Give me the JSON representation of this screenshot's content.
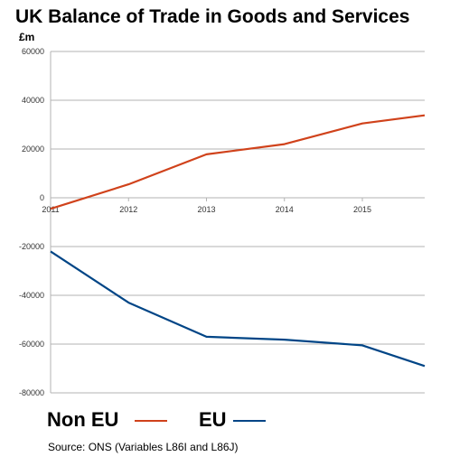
{
  "chart_data": {
    "type": "line",
    "title": "UK Balance of Trade in Goods and Services",
    "ylabel": "£m",
    "xlabel": "",
    "x_ticks": [
      "2011",
      "2012",
      "2013",
      "2014",
      "2015"
    ],
    "y_ticks": [
      "60000",
      "40000",
      "20000",
      "0",
      "-20000",
      "-40000",
      "-60000",
      "-80000"
    ],
    "xlim": [
      2011,
      2015.8
    ],
    "ylim": [
      -80000,
      60000
    ],
    "grid": "horizontal",
    "legend_position": "bottom",
    "series": [
      {
        "name": "Non EU",
        "color": "#d0421b",
        "x": [
          2011,
          2012,
          2013,
          2014,
          2015,
          2015.8
        ],
        "y": [
          -4500,
          5500,
          17800,
          22000,
          30500,
          33800
        ]
      },
      {
        "name": "EU",
        "color": "#004586",
        "x": [
          2011,
          2012,
          2013,
          2014,
          2015,
          2015.8
        ],
        "y": [
          -22000,
          -43000,
          -57000,
          -58200,
          -60500,
          -69000
        ]
      }
    ]
  },
  "source_text": "Source:  ONS (Variables L86I and L86J)"
}
